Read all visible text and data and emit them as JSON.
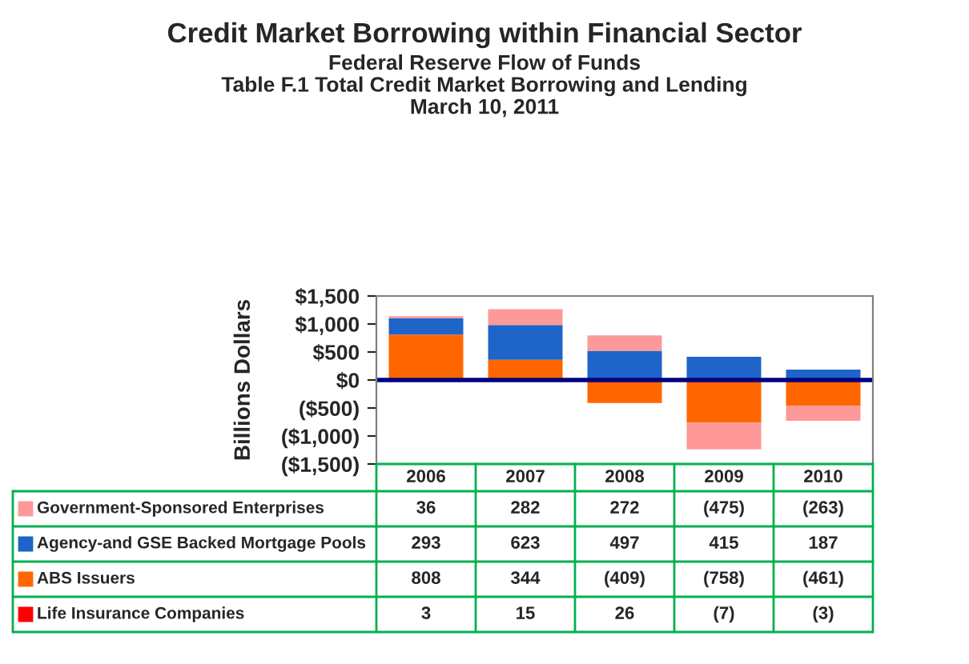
{
  "chart_data": {
    "type": "bar",
    "title": "Credit Market Borrowing within Financial Sector",
    "subtitle": "Federal Reserve Flow of Funds\nTable F.1 Total Credit Market Borrowing and Lending\nMarch 10, 2011",
    "ylabel": "Billions Dollars",
    "categories": [
      "2006",
      "2007",
      "2008",
      "2009",
      "2010"
    ],
    "stacked": true,
    "series": [
      {
        "name": "Life Insurance Companies",
        "color": "#ff0000",
        "values": [
          3,
          15,
          26,
          -7,
          -3
        ],
        "value_labels": [
          "3",
          "15",
          "26",
          "(7)",
          "(3)"
        ]
      },
      {
        "name": "ABS Issuers",
        "color": "#ff6600",
        "values": [
          808,
          344,
          -409,
          -758,
          -461
        ],
        "value_labels": [
          "808",
          "344",
          "(409)",
          "(758)",
          "(461)"
        ]
      },
      {
        "name": "Agency-and GSE Backed Mortgage Pools",
        "color": "#1f64c8",
        "values": [
          293,
          623,
          497,
          415,
          187
        ],
        "value_labels": [
          "293",
          "623",
          "497",
          "415",
          "187"
        ]
      },
      {
        "name": "Government-Sponsored Enterprises",
        "color": "#ff9999",
        "values": [
          36,
          282,
          272,
          -475,
          -263
        ],
        "value_labels": [
          "36",
          "282",
          "272",
          "(475)",
          "(263)"
        ]
      }
    ],
    "ylim": [
      -1500,
      1500
    ],
    "yticks": [
      {
        "value": 1500,
        "label": "$1,500"
      },
      {
        "value": 1000,
        "label": "$1,000"
      },
      {
        "value": 500,
        "label": "$500"
      },
      {
        "value": 0,
        "label": "$0"
      },
      {
        "value": -500,
        "label": "($500)"
      },
      {
        "value": -1000,
        "label": "($1,000)"
      },
      {
        "value": -1500,
        "label": "($1,500)"
      }
    ],
    "ref_lines": [
      {
        "axis": "y",
        "value": 0,
        "color": "#000080"
      }
    ],
    "legend": "bottom",
    "grid": false
  }
}
